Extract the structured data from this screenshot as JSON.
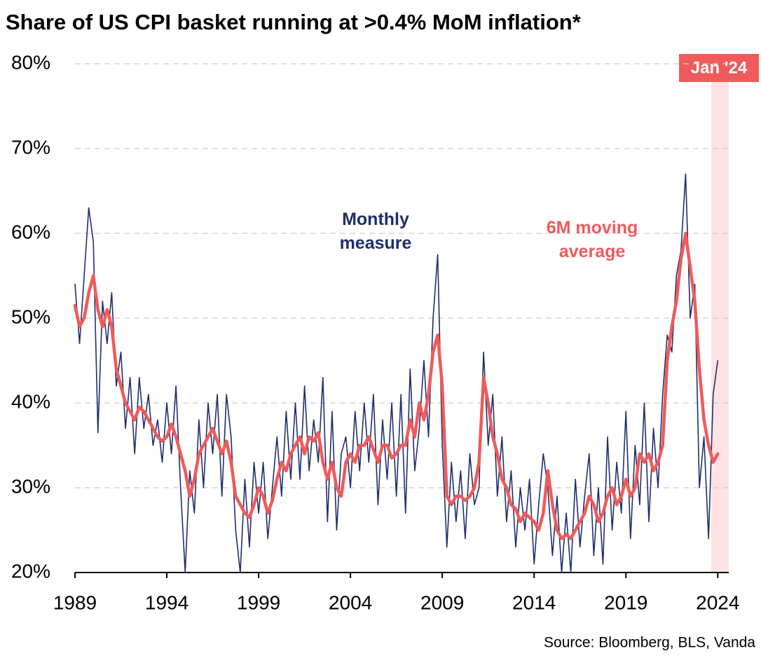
{
  "chart_data": {
    "type": "line",
    "title": "Share of US CPI basket running at >0.4% MoM inflation*",
    "source": "Source: Bloomberg, BLS, Vanda",
    "highlight_label": "Jan '24",
    "x": [
      1989,
      1989.25,
      1989.5,
      1989.75,
      1990,
      1990.25,
      1990.5,
      1990.75,
      1991,
      1991.25,
      1991.5,
      1991.75,
      1992,
      1992.25,
      1992.5,
      1992.75,
      1993,
      1993.25,
      1993.5,
      1993.75,
      1994,
      1994.25,
      1994.5,
      1994.75,
      1995,
      1995.25,
      1995.5,
      1995.75,
      1996,
      1996.25,
      1996.5,
      1996.75,
      1997,
      1997.25,
      1997.5,
      1997.75,
      1998,
      1998.25,
      1998.5,
      1998.75,
      1999,
      1999.25,
      1999.5,
      1999.75,
      2000,
      2000.25,
      2000.5,
      2000.75,
      2001,
      2001.25,
      2001.5,
      2001.75,
      2002,
      2002.25,
      2002.5,
      2002.75,
      2003,
      2003.25,
      2003.5,
      2003.75,
      2004,
      2004.25,
      2004.5,
      2004.75,
      2005,
      2005.25,
      2005.5,
      2005.75,
      2006,
      2006.25,
      2006.5,
      2006.75,
      2007,
      2007.25,
      2007.5,
      2007.75,
      2008,
      2008.25,
      2008.5,
      2008.75,
      2009,
      2009.25,
      2009.5,
      2009.75,
      2010,
      2010.25,
      2010.5,
      2010.75,
      2011,
      2011.25,
      2011.5,
      2011.75,
      2012,
      2012.25,
      2012.5,
      2012.75,
      2013,
      2013.25,
      2013.5,
      2013.75,
      2014,
      2014.25,
      2014.5,
      2014.75,
      2015,
      2015.25,
      2015.5,
      2015.75,
      2016,
      2016.25,
      2016.5,
      2016.75,
      2017,
      2017.25,
      2017.5,
      2017.75,
      2018,
      2018.25,
      2018.5,
      2018.75,
      2019,
      2019.25,
      2019.5,
      2019.75,
      2020,
      2020.25,
      2020.5,
      2020.75,
      2021,
      2021.25,
      2021.5,
      2021.75,
      2022,
      2022.25,
      2022.5,
      2022.75,
      2023,
      2023.25,
      2023.5,
      2023.75,
      2024
    ],
    "series": [
      {
        "name": "Monthly measure",
        "color": "#1f2f6b",
        "width": 1.6,
        "values": [
          54,
          47,
          55,
          63,
          59,
          36.5,
          52,
          47,
          53,
          42,
          46,
          37,
          43,
          34,
          43,
          37,
          41,
          35,
          38,
          33,
          40,
          34,
          42,
          30,
          20,
          32,
          27,
          38,
          30,
          40,
          34,
          41,
          29,
          41,
          36,
          25,
          20,
          31,
          23,
          33,
          27,
          33,
          24,
          30,
          36,
          29,
          39,
          31,
          40,
          31,
          42,
          32,
          38,
          33,
          43,
          26,
          39,
          25,
          34,
          36,
          30,
          39,
          32,
          40,
          33,
          41,
          28,
          38,
          31,
          40,
          29,
          41,
          27,
          44,
          32,
          37,
          45,
          36,
          50,
          57.5,
          35,
          23,
          33,
          26,
          32,
          24,
          34,
          28,
          30,
          46,
          35,
          41,
          29,
          36,
          26,
          32,
          23,
          30,
          25,
          31,
          21,
          28,
          34,
          30,
          22,
          29,
          20,
          27,
          20,
          31,
          23,
          29,
          34,
          22,
          30,
          21,
          36,
          25,
          33,
          27,
          39,
          24,
          35,
          28,
          40,
          26,
          37,
          30,
          41,
          48,
          46,
          55,
          58,
          67,
          50,
          54,
          30,
          36,
          24,
          41,
          45
        ]
      },
      {
        "name": "6M moving average",
        "color": "#f05a5a",
        "width": 4.5,
        "values": [
          51.5,
          49,
          50,
          53,
          55,
          51,
          49,
          51,
          49,
          44,
          42,
          40,
          39,
          38,
          39.5,
          39,
          38,
          37,
          36,
          35.5,
          36,
          37.5,
          36,
          34,
          32,
          29,
          31,
          34,
          35,
          36,
          37,
          35.5,
          34,
          35.5,
          33,
          29,
          28,
          27,
          26.5,
          28,
          30,
          29,
          27,
          28.5,
          31,
          33,
          32,
          34,
          35,
          36,
          34,
          36,
          35.5,
          36.5,
          33,
          31,
          33,
          30,
          29,
          33,
          34,
          33,
          35,
          35,
          36,
          34.5,
          33,
          35,
          35,
          33.5,
          34,
          35,
          35,
          38,
          36,
          40,
          38,
          41,
          46,
          48,
          42,
          29,
          28,
          29,
          29,
          28.5,
          29,
          30,
          33,
          43,
          40,
          36,
          34,
          31,
          30,
          28,
          27.5,
          26,
          27,
          26.5,
          26,
          25,
          27,
          32,
          28,
          25,
          24,
          24.5,
          24,
          25,
          26,
          27,
          29,
          28,
          26,
          27,
          29,
          30,
          28,
          29,
          31,
          29,
          30,
          34,
          33,
          34,
          32,
          33,
          35,
          45,
          49,
          52,
          57,
          60,
          56,
          52,
          44,
          38,
          35,
          33,
          34
        ]
      }
    ],
    "xlim": [
      1989,
      2024.6
    ],
    "xticks": [
      1989,
      1994,
      1999,
      2004,
      2009,
      2014,
      2019,
      2024
    ],
    "ylim": [
      20,
      80
    ],
    "yticks": [
      {
        "value": 20,
        "label": "20%"
      },
      {
        "value": 30,
        "label": "30%"
      },
      {
        "value": 40,
        "label": "40%"
      },
      {
        "value": 50,
        "label": "50%"
      },
      {
        "value": 60,
        "label": "60%"
      },
      {
        "value": 70,
        "label": "70%"
      },
      {
        "value": 80,
        "label": "80%"
      }
    ],
    "grid": true
  }
}
